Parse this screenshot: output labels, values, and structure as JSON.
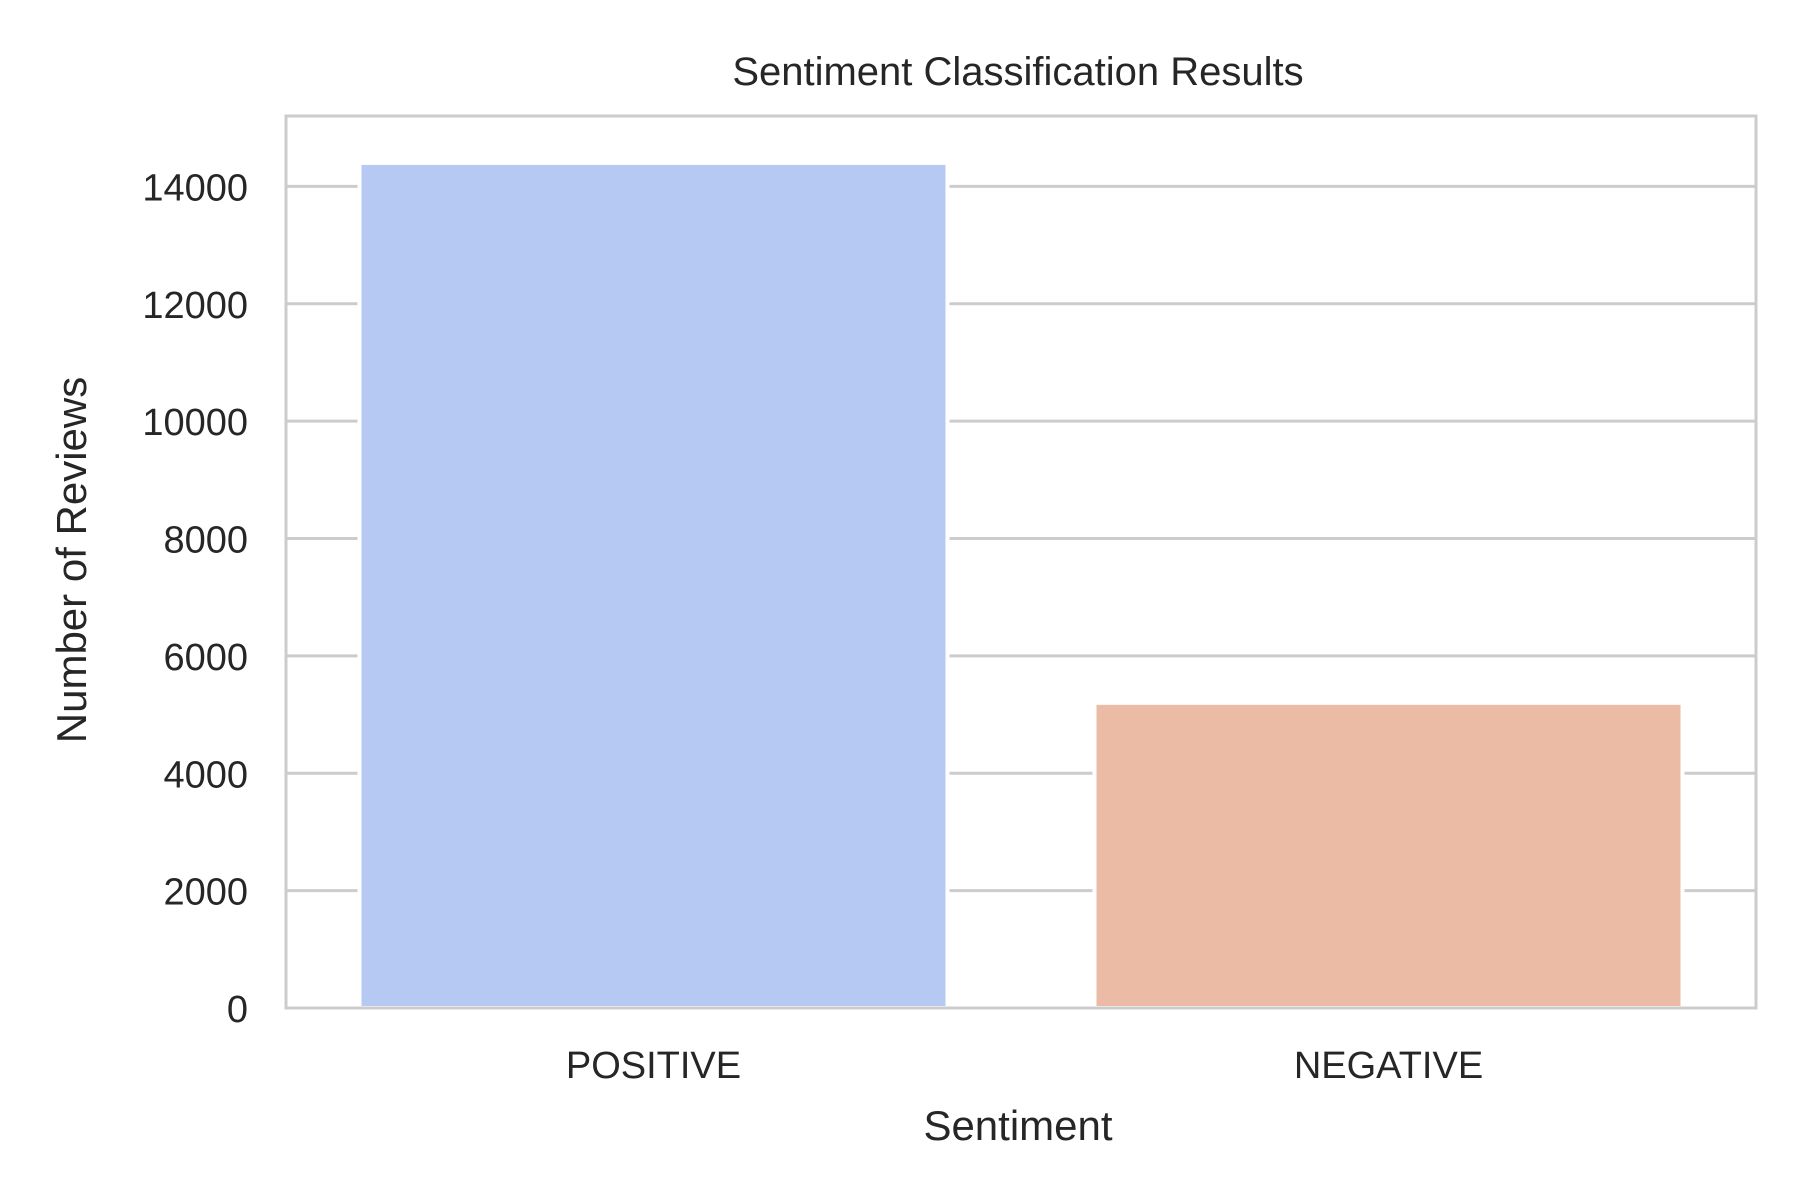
{
  "chart_data": {
    "type": "bar",
    "title": "Sentiment Classification Results",
    "xlabel": "Sentiment",
    "ylabel": "Number of Reviews",
    "categories": [
      "POSITIVE",
      "NEGATIVE"
    ],
    "values": [
      14400,
      5200
    ],
    "ylim": [
      0,
      15200
    ],
    "yticks": [
      0,
      2000,
      4000,
      6000,
      8000,
      10000,
      12000,
      14000
    ],
    "ytick_labels": [
      "0",
      "2000",
      "4000",
      "6000",
      "8000",
      "10000",
      "12000",
      "14000"
    ],
    "colors": [
      "#b5c9f2",
      "#ecbba6"
    ],
    "grid": "horizontal",
    "grid_color": "#cccccc",
    "spine_color": "#cccccc",
    "text_color": "#262626"
  }
}
